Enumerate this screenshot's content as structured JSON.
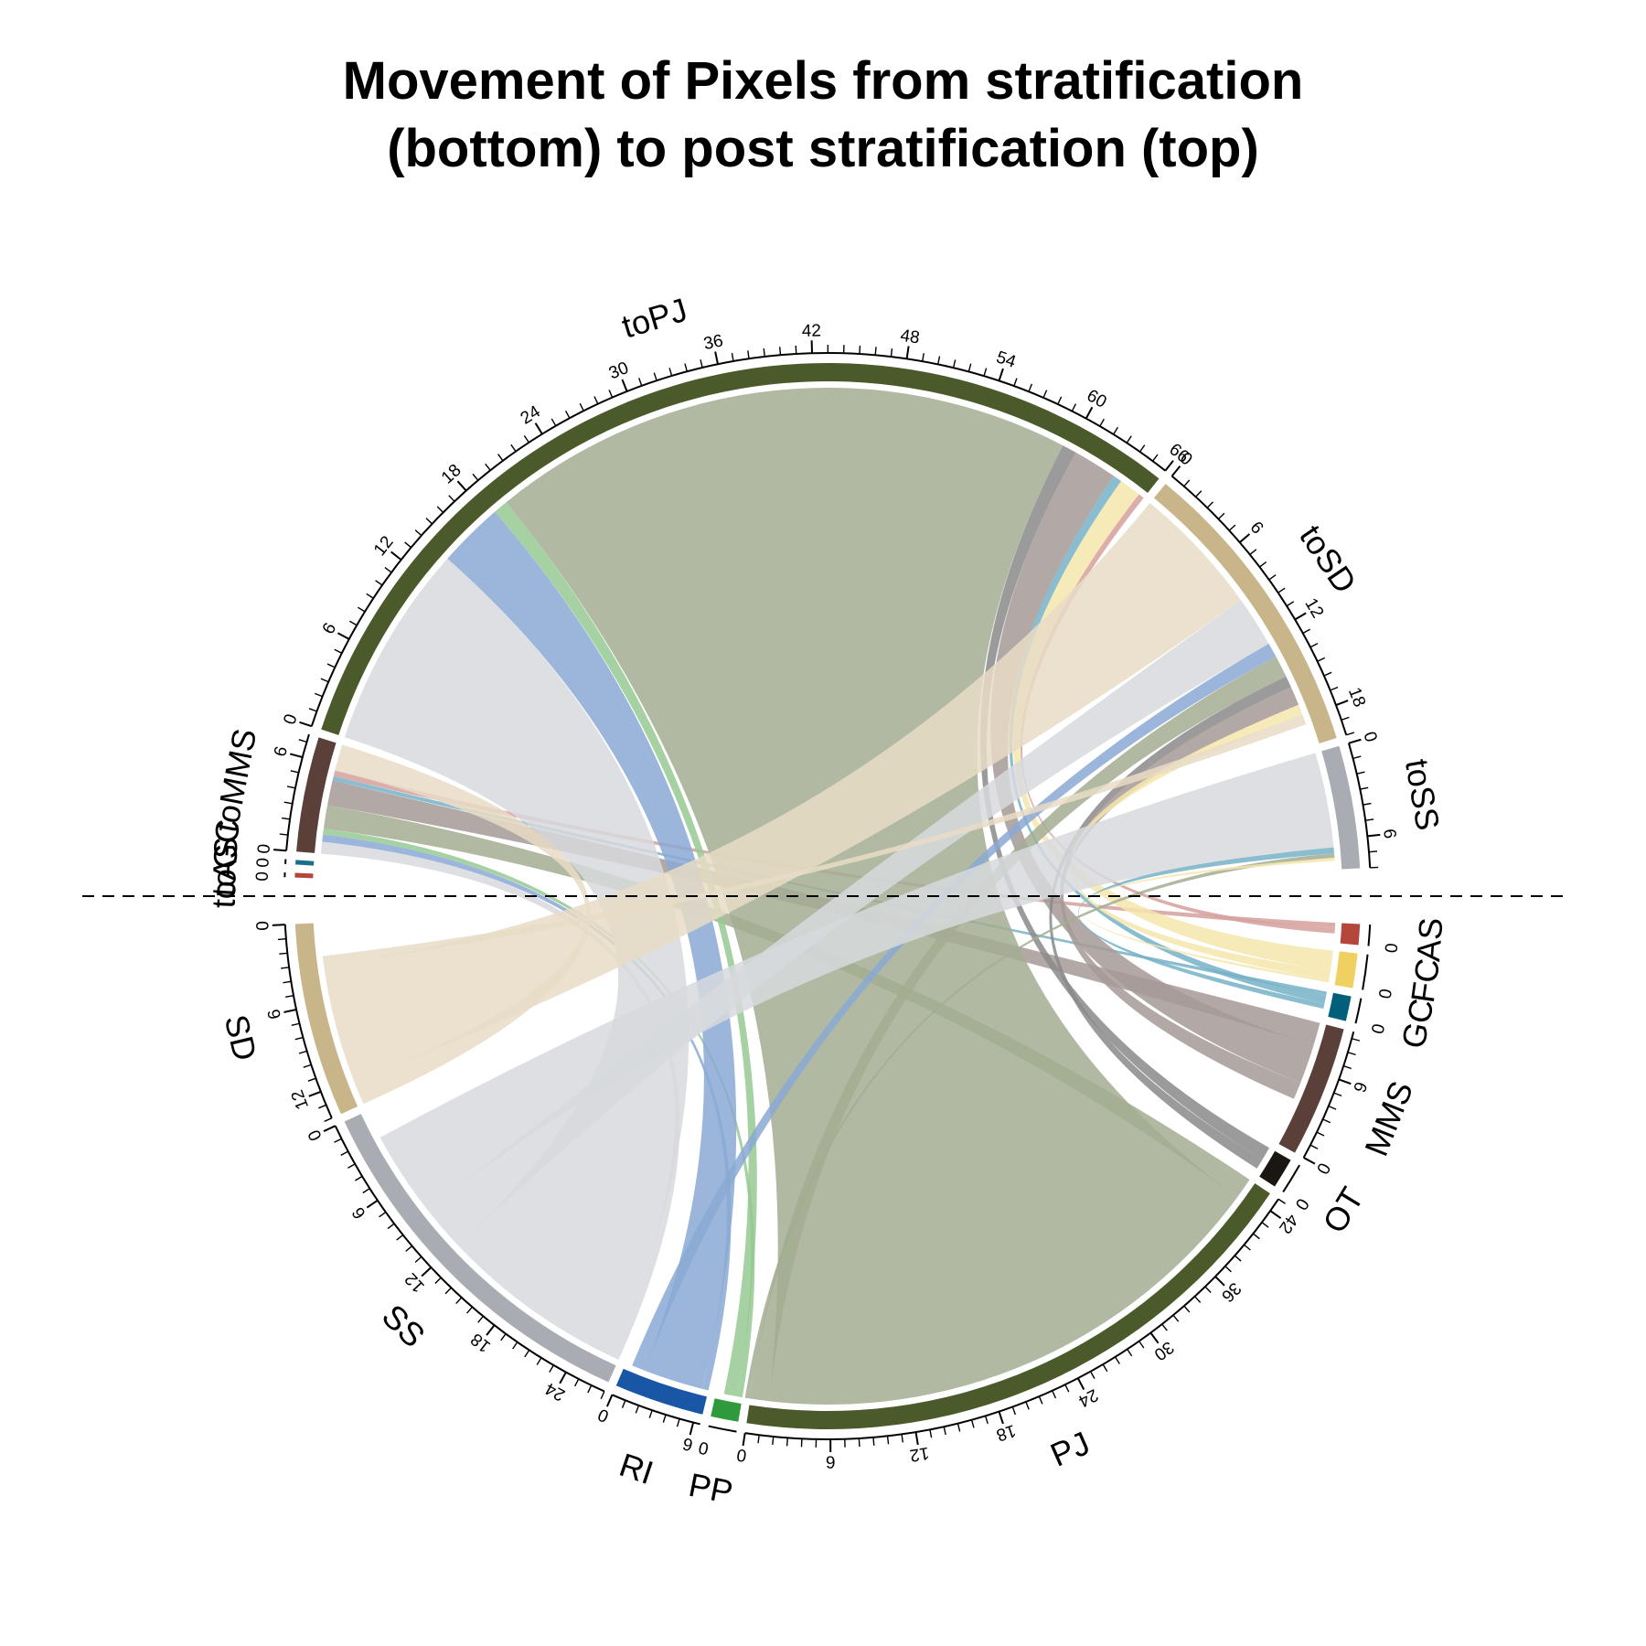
{
  "title": {
    "line1": "Movement of Pixels from stratification",
    "line2": "(bottom) to post stratification (top)"
  },
  "chart_data": {
    "type": "chord",
    "top_sectors": [
      {
        "name": "toAS",
        "total": 0.3,
        "color": "#b5473a"
      },
      {
        "name": "toGC",
        "total": 0.3,
        "color": "#1a6e8a"
      },
      {
        "name": "toMMS",
        "total": 7.5,
        "color": "#5a4038"
      },
      {
        "name": "toPJ",
        "total": 66,
        "color": "#4a5a2a"
      },
      {
        "name": "toSD",
        "total": 20,
        "color": "#c9b58a"
      },
      {
        "name": "toSS",
        "total": 8,
        "color": "#a9adb3"
      }
    ],
    "bottom_sectors": [
      {
        "name": "AS",
        "total": 1.5,
        "color": "#b5473a"
      },
      {
        "name": "FC",
        "total": 2.5,
        "color": "#f0d060"
      },
      {
        "name": "GC",
        "total": 1.8,
        "color": "#005f7a"
      },
      {
        "name": "MMS",
        "total": 9.5,
        "color": "#5a4038"
      },
      {
        "name": "OT",
        "total": 2.2,
        "color": "#1a1612"
      },
      {
        "name": "PJ",
        "total": 43,
        "color": "#4a5a2a"
      },
      {
        "name": "PP",
        "total": 2,
        "color": "#2e9a3c"
      },
      {
        "name": "RI",
        "total": 6.5,
        "color": "#1a56a6"
      },
      {
        "name": "SS",
        "total": 27,
        "color": "#a9adb3"
      },
      {
        "name": "SD",
        "total": 14,
        "color": "#c9b58a"
      }
    ],
    "links": [
      {
        "from": "SS",
        "to": "toMMS",
        "value": 0.8,
        "color": "#d7d9dd"
      },
      {
        "from": "RI",
        "to": "toMMS",
        "value": 0.5,
        "color": "#8aa9d3"
      },
      {
        "from": "PP",
        "to": "toMMS",
        "value": 0.4,
        "color": "#96c992"
      },
      {
        "from": "PJ",
        "to": "toMMS",
        "value": 1.6,
        "color": "#a3ad92"
      },
      {
        "from": "MMS",
        "to": "toMMS",
        "value": 1.7,
        "color": "#a49a96"
      },
      {
        "from": "GC",
        "to": "toMMS",
        "value": 0.3,
        "color": "#76b2c7"
      },
      {
        "from": "AS",
        "to": "toMMS",
        "value": 0.4,
        "color": "#d6a09c"
      },
      {
        "from": "SD",
        "to": "toMMS",
        "value": 1.8,
        "color": "#e7dcc6"
      },
      {
        "from": "SS",
        "to": "toPJ",
        "value": 14,
        "color": "#d7d9dd"
      },
      {
        "from": "RI",
        "to": "toPJ",
        "value": 4.5,
        "color": "#8aa9d3"
      },
      {
        "from": "PP",
        "to": "toPJ",
        "value": 1,
        "color": "#96c992"
      },
      {
        "from": "PJ",
        "to": "toPJ",
        "value": 40,
        "color": "#a3ad92"
      },
      {
        "from": "OT",
        "to": "toPJ",
        "value": 1,
        "color": "#8a8a8a"
      },
      {
        "from": "MMS",
        "to": "toPJ",
        "value": 3,
        "color": "#a49a96"
      },
      {
        "from": "GC",
        "to": "toPJ",
        "value": 0.6,
        "color": "#76b2c7"
      },
      {
        "from": "FC",
        "to": "toPJ",
        "value": 1.5,
        "color": "#f6e6ad"
      },
      {
        "from": "AS",
        "to": "toPJ",
        "value": 0.4,
        "color": "#d6a09c"
      },
      {
        "from": "SD",
        "to": "toSD",
        "value": 9,
        "color": "#e7dcc6"
      },
      {
        "from": "SS",
        "to": "toSD",
        "value": 3.5,
        "color": "#d7d9dd"
      },
      {
        "from": "RI",
        "to": "toSD",
        "value": 1,
        "color": "#8aa9d3"
      },
      {
        "from": "PJ",
        "to": "toSD",
        "value": 1.5,
        "color": "#a3ad92"
      },
      {
        "from": "OT",
        "to": "toSD",
        "value": 0.8,
        "color": "#8a8a8a"
      },
      {
        "from": "MMS",
        "to": "toSD",
        "value": 1.3,
        "color": "#a49a96"
      },
      {
        "from": "FC",
        "to": "toSD",
        "value": 0.7,
        "color": "#f6e6ad"
      },
      {
        "from": "SD",
        "to": "toSD",
        "value": 0.7,
        "color": "#e7dcc6"
      },
      {
        "from": "SS",
        "to": "toSS",
        "value": 6.5,
        "color": "#d7d9dd"
      },
      {
        "from": "GC",
        "to": "toSS",
        "value": 0.4,
        "color": "#76b2c7"
      },
      {
        "from": "PJ",
        "to": "toSS",
        "value": 0.3,
        "color": "#a3ad92"
      },
      {
        "from": "FC",
        "to": "toSS",
        "value": 0.2,
        "color": "#f6e6ad"
      }
    ]
  }
}
